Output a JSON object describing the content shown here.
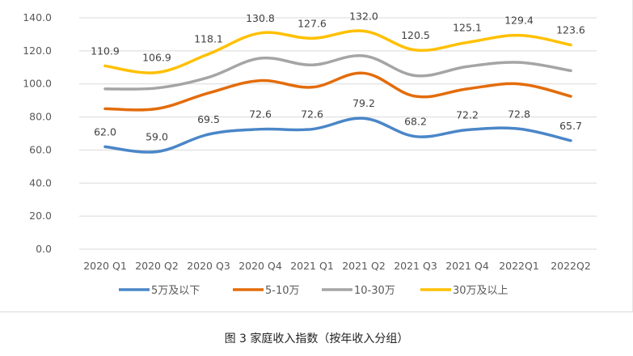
{
  "caption": "图 3 家庭收入指数（按年收入分组）",
  "chart_data": {
    "type": "line",
    "title": "",
    "xlabel": "",
    "ylabel": "",
    "categories": [
      "2020 Q1",
      "2020 Q2",
      "2020 Q3",
      "2020 Q4",
      "2021 Q1",
      "2021 Q2",
      "2021 Q3",
      "2021 Q4",
      "2022Q1",
      "2022Q2"
    ],
    "ylim": [
      0,
      140
    ],
    "yticks": [
      "0.0",
      "20.0",
      "40.0",
      "60.0",
      "80.0",
      "100.0",
      "120.0",
      "140.0"
    ],
    "grid": true,
    "legend_position": "bottom",
    "series": [
      {
        "name": "5万及以下",
        "color": "#4A86C8",
        "values": [
          62.0,
          59.0,
          69.5,
          72.6,
          72.6,
          79.2,
          68.2,
          72.2,
          72.8,
          65.7
        ],
        "labels": [
          "62.0",
          "59.0",
          "69.5",
          "72.6",
          "72.6",
          "79.2",
          "68.2",
          "72.2",
          "72.8",
          "65.7"
        ]
      },
      {
        "name": "5-10万",
        "color": "#E36C0A",
        "values": [
          85.0,
          85.0,
          94.5,
          102.0,
          98.0,
          106.5,
          92.5,
          97.0,
          100.0,
          92.5
        ],
        "labels": []
      },
      {
        "name": "10-30万",
        "color": "#A5A5A5",
        "values": [
          97.0,
          97.5,
          104.0,
          115.5,
          111.5,
          117.0,
          105.0,
          110.5,
          113.0,
          108.0
        ],
        "labels": []
      },
      {
        "name": "30万及以上",
        "color": "#FFC000",
        "values": [
          110.9,
          106.9,
          118.1,
          130.8,
          127.6,
          132.0,
          120.5,
          125.1,
          129.4,
          123.6
        ],
        "labels": [
          "110.9",
          "106.9",
          "118.1",
          "130.8",
          "127.6",
          "132.0",
          "120.5",
          "125.1",
          "129.4",
          "123.6"
        ]
      }
    ]
  }
}
